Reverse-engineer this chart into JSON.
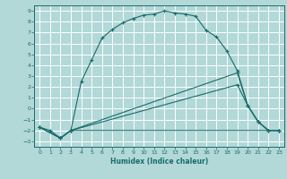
{
  "xlabel": "Humidex (Indice chaleur)",
  "bg_color": "#b2d8d8",
  "grid_color": "#ffffff",
  "line_color": "#1a6b6b",
  "xlim": [
    -0.5,
    23.5
  ],
  "ylim": [
    -3.5,
    9.5
  ],
  "xticks": [
    0,
    1,
    2,
    3,
    4,
    5,
    6,
    7,
    8,
    9,
    10,
    11,
    12,
    13,
    14,
    15,
    16,
    17,
    18,
    19,
    20,
    21,
    22,
    23
  ],
  "yticks": [
    -3,
    -2,
    -1,
    0,
    1,
    2,
    3,
    4,
    5,
    6,
    7,
    8,
    9
  ],
  "curve1_x": [
    0,
    1,
    2,
    3,
    4,
    5,
    6,
    7,
    8,
    9,
    10,
    11,
    12,
    13,
    14,
    15,
    16,
    17,
    18,
    19,
    20,
    21,
    22,
    23
  ],
  "curve1_y": [
    -1.7,
    -2.0,
    -2.7,
    -2.0,
    2.5,
    4.5,
    6.5,
    7.3,
    7.9,
    8.3,
    8.6,
    8.7,
    9.0,
    8.8,
    8.7,
    8.5,
    7.2,
    6.6,
    5.3,
    3.5,
    0.3,
    -1.2,
    -2.0,
    -2.0
  ],
  "curve2_x": [
    0,
    2,
    3,
    23
  ],
  "curve2_y": [
    -1.7,
    -2.7,
    -2.0,
    -2.0
  ],
  "curve3_x": [
    0,
    2,
    3,
    19,
    20,
    21,
    22,
    23
  ],
  "curve3_y": [
    -1.7,
    -2.7,
    -2.0,
    3.3,
    0.3,
    -1.2,
    -2.0,
    -2.0
  ],
  "curve4_x": [
    0,
    2,
    3,
    19,
    20,
    21,
    22,
    23
  ],
  "curve4_y": [
    -1.7,
    -2.7,
    -2.0,
    2.2,
    0.3,
    -1.2,
    -2.0,
    -2.0
  ]
}
